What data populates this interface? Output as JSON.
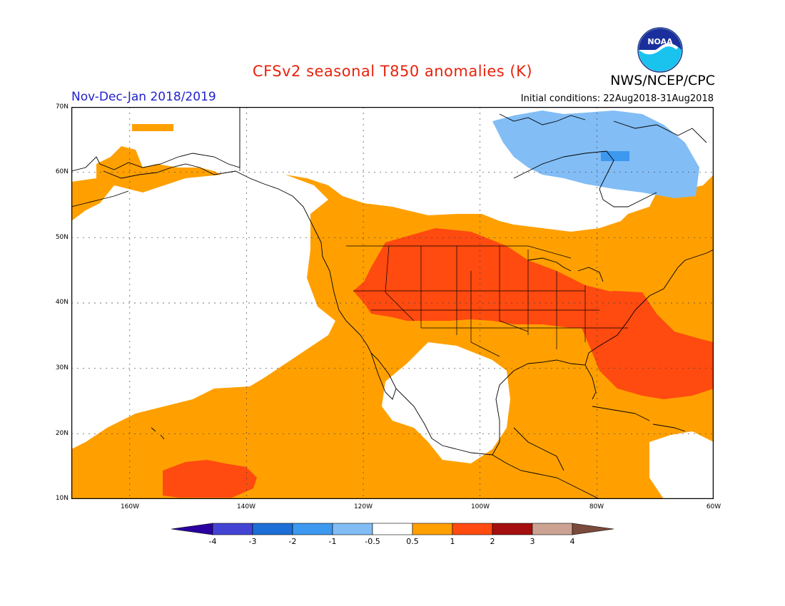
{
  "header": {
    "title": "CFSv2 seasonal T850 anomalies (K)",
    "period": "Nov-Dec-Jan 2018/2019",
    "initial_conditions": "Initial conditions: 22Aug2018-31Aug2018",
    "organization": "NWS/NCEP/CPC",
    "logo_text": "NOAA"
  },
  "map": {
    "lon_range": [
      -170,
      -60
    ],
    "lat_range": [
      10,
      70
    ],
    "lat_labels": [
      "70N",
      "60N",
      "50N",
      "40N",
      "30N",
      "20N",
      "10N"
    ],
    "lon_labels": [
      "160W",
      "140W",
      "120W",
      "100W",
      "80W",
      "60W"
    ],
    "icon": "north-america-map"
  },
  "colorbar": {
    "labels": [
      "-4",
      "-3",
      "-2",
      "-1",
      "-0.5",
      "0.5",
      "1",
      "2",
      "3",
      "4"
    ],
    "colors": [
      "#2b00a0",
      "#4444d4",
      "#1c6fd6",
      "#3d98ef",
      "#82bdf5",
      "#ffffff",
      "#ffa000",
      "#ff4a10",
      "#a60f0f",
      "#cca393",
      "#7a4a3a"
    ]
  }
}
